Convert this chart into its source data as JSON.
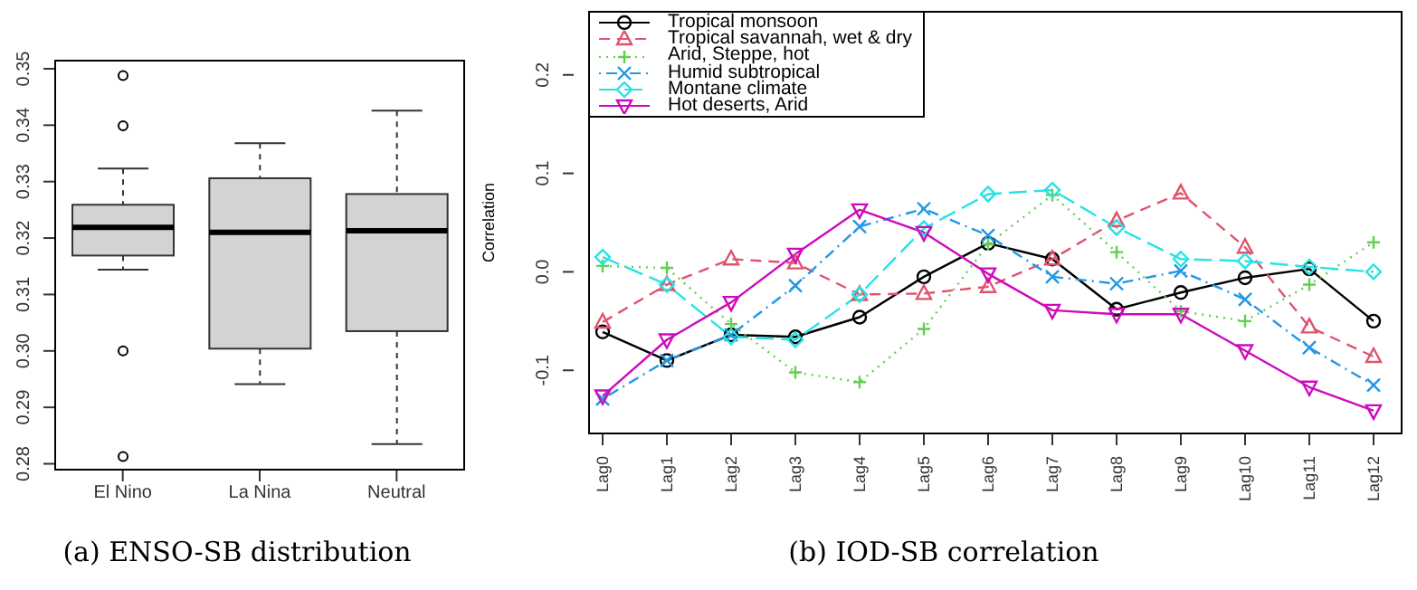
{
  "chart_data": [
    {
      "type": "box",
      "title": "(a) ENSO-SB distribution",
      "categories": [
        "El Nino",
        "La Nina",
        "Neutral"
      ],
      "boxes": [
        {
          "low": 0.3144,
          "q1": 0.3169,
          "median": 0.3219,
          "q3": 0.3259,
          "high": 0.3323,
          "outliers": [
            0.3488,
            0.3399,
            0.3,
            0.2813
          ]
        },
        {
          "low": 0.2941,
          "q1": 0.3004,
          "median": 0.321,
          "q3": 0.3306,
          "high": 0.3368
        },
        {
          "low": 0.2835,
          "q1": 0.3035,
          "median": 0.3213,
          "q3": 0.3278,
          "high": 0.3426
        }
      ],
      "color": "#d3d3d3",
      "ylim": [
        0.2788,
        0.3516
      ],
      "yticks": [
        0.28,
        0.29,
        {
          "value": 0.3,
          "label": "0.30"
        },
        0.31,
        0.32,
        0.33,
        0.34,
        0.35
      ],
      "legend": false
    },
    {
      "type": "line",
      "title": "(b) IOD-SB correlation",
      "ylabel": "Correlation",
      "categories": [
        "Lag0",
        "Lag1",
        "Lag2",
        "Lag3",
        "Lag4",
        "Lag5",
        "Lag6",
        "Lag7",
        "Lag8",
        "Lag9",
        "Lag10",
        "Lag11",
        "Lag12"
      ],
      "series": [
        {
          "name": "Tropical monsoon",
          "color": "#000000",
          "marker": "circle",
          "line_style": "solid",
          "values": [
            -0.061,
            -0.09,
            -0.064,
            -0.066,
            -0.046,
            -0.005,
            0.029,
            0.013,
            -0.038,
            -0.021,
            -0.006,
            0.003,
            -0.05
          ]
        },
        {
          "name": "Tropical savannah, wet & dry",
          "color": "#df536b",
          "marker": "triangle",
          "line_style": "dashed",
          "values": [
            -0.051,
            -0.013,
            0.013,
            0.009,
            -0.023,
            -0.022,
            -0.015,
            0.013,
            0.052,
            0.08,
            0.025,
            -0.056,
            -0.086
          ]
        },
        {
          "name": "Arid, Steppe, hot",
          "color": "#61d04f",
          "marker": "plus",
          "line_style": "dotted",
          "values": [
            0.006,
            0.004,
            -0.053,
            -0.102,
            -0.112,
            -0.058,
            0.028,
            0.078,
            0.02,
            -0.04,
            -0.05,
            -0.013,
            0.03
          ]
        },
        {
          "name": "Humid subtropical",
          "color": "#2297e6",
          "marker": "cross",
          "line_style": "dashdot",
          "values": [
            -0.129,
            -0.09,
            -0.064,
            -0.014,
            0.046,
            0.064,
            0.037,
            -0.005,
            -0.012,
            0.001,
            -0.028,
            -0.077,
            -0.115
          ]
        },
        {
          "name": "Montane climate",
          "color": "#28e2e5",
          "marker": "diamond",
          "line_style": "longdash",
          "values": [
            0.015,
            -0.013,
            -0.066,
            -0.069,
            -0.023,
            0.044,
            0.079,
            0.083,
            0.045,
            0.013,
            0.011,
            0.005,
            0.0
          ]
        },
        {
          "name": "Hot deserts, Arid",
          "color": "#cd0bbc",
          "marker": "triangle-down",
          "line_style": "solid",
          "values": [
            -0.126,
            -0.069,
            -0.031,
            0.018,
            0.063,
            0.04,
            -0.002,
            -0.039,
            -0.043,
            -0.043,
            -0.08,
            -0.117,
            -0.141
          ]
        }
      ],
      "ylim": [
        -0.165,
        0.265
      ],
      "yticks": [
        -0.1,
        {
          "value": 0,
          "label": "0.0"
        },
        0.1,
        0.2
      ],
      "legend": "top left"
    }
  ]
}
